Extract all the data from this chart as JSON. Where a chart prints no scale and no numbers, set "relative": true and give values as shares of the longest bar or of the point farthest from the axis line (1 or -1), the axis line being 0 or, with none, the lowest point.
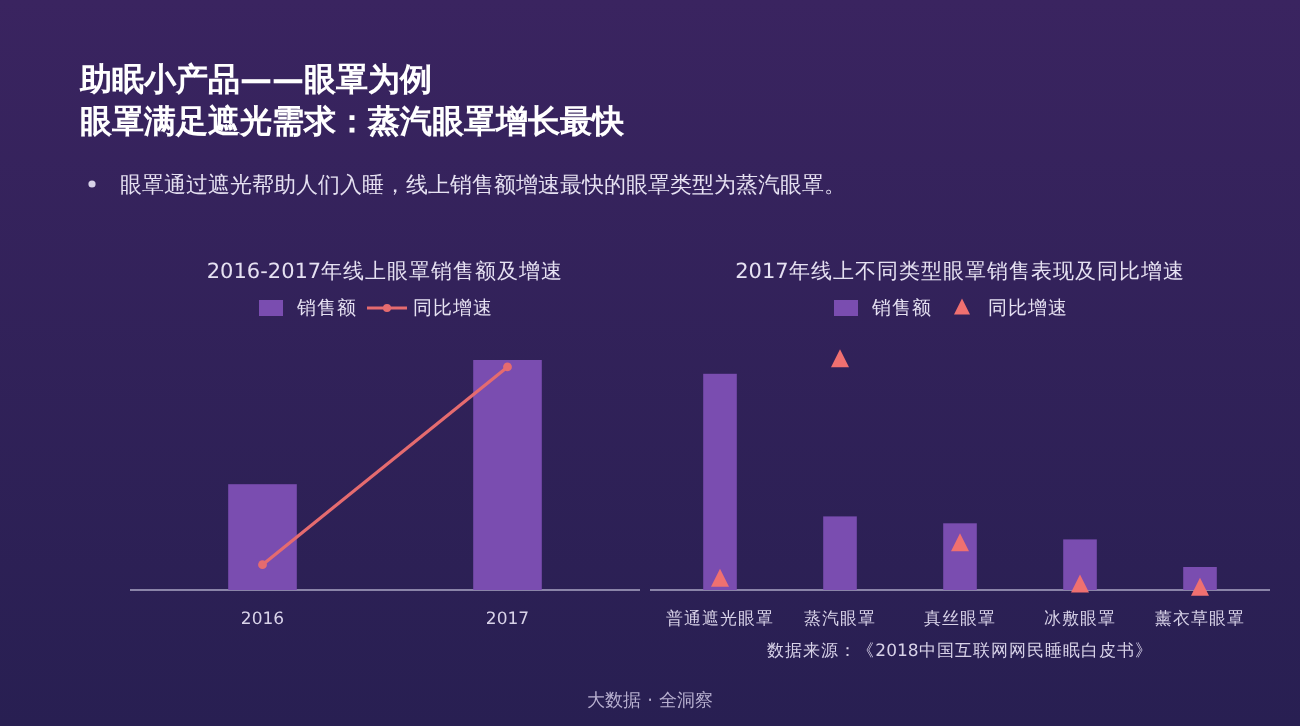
{
  "chart_data": [
    {
      "type": "other",
      "title": "助眠小产品——眼罩为例",
      "subtitle": "眼罩满足遮光需求：蒸汽眼罩增长最快",
      "annotations": [
        "眼罩通过遮光帮助人们入睡，线上销售额增速最快的眼罩类型为蒸汽眼罩。",
        "大数据 · 全洞察"
      ]
    },
    {
      "type": "bar",
      "title": "2016-2017年线上眼罩销售额及增速",
      "relative": true,
      "categories": [
        "2016",
        "2017"
      ],
      "legend": "top",
      "marker": "circle",
      "series": [
        {
          "name": "销售额",
          "type": "bar",
          "color": "#7a4db0",
          "values": [
            0.46,
            1
          ]
        },
        {
          "name": "同比增速",
          "type": "line",
          "color": "#e56b6f",
          "values": [
            0.11,
            0.97
          ]
        }
      ]
    },
    {
      "type": "bar",
      "title": "2017年线上不同类型眼罩销售表现及同比增速",
      "relative": true,
      "categories": [
        "普通遮光眼罩",
        "蒸汽眼罩",
        "真丝眼罩",
        "冰敷眼罩",
        "薰衣草眼罩"
      ],
      "legend": "top",
      "marker": "triangle",
      "series": [
        {
          "name": "销售额",
          "type": "bar",
          "color": "#7a4db0",
          "values": [
            0.94,
            0.32,
            0.29,
            0.22,
            0.1
          ]
        },
        {
          "name": "同比增速",
          "type": "scatter",
          "color": "#f07070",
          "values": [
            0.045,
            1,
            0.2,
            0.02,
            0.006
          ]
        }
      ],
      "annotations": [
        "数据来源：《2018中国互联网网民睡眠白皮书》"
      ]
    }
  ]
}
